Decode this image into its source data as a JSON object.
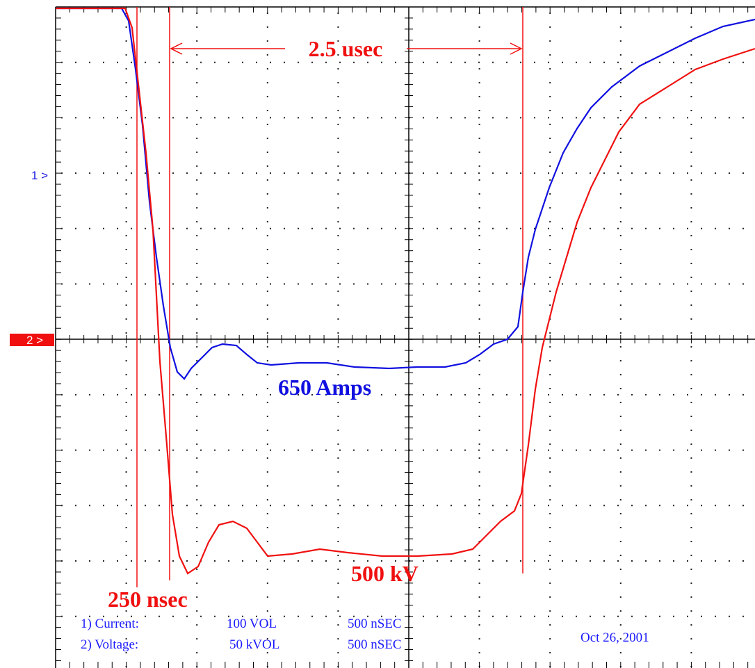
{
  "channels": {
    "ch1": "1 >",
    "ch2": "2 >"
  },
  "annotations": {
    "period": "2.5 usec",
    "rise": "250 nsec",
    "current": "650 Amps",
    "voltage": "500 kV"
  },
  "settings": [
    {
      "label": "1) Current:",
      "scale": "100 VOL",
      "time": "500 nSEC"
    },
    {
      "label": "2) Voltage:",
      "scale": "50 kVOL",
      "time": "500 nSEC"
    }
  ],
  "date": "Oct 26, 2001"
}
